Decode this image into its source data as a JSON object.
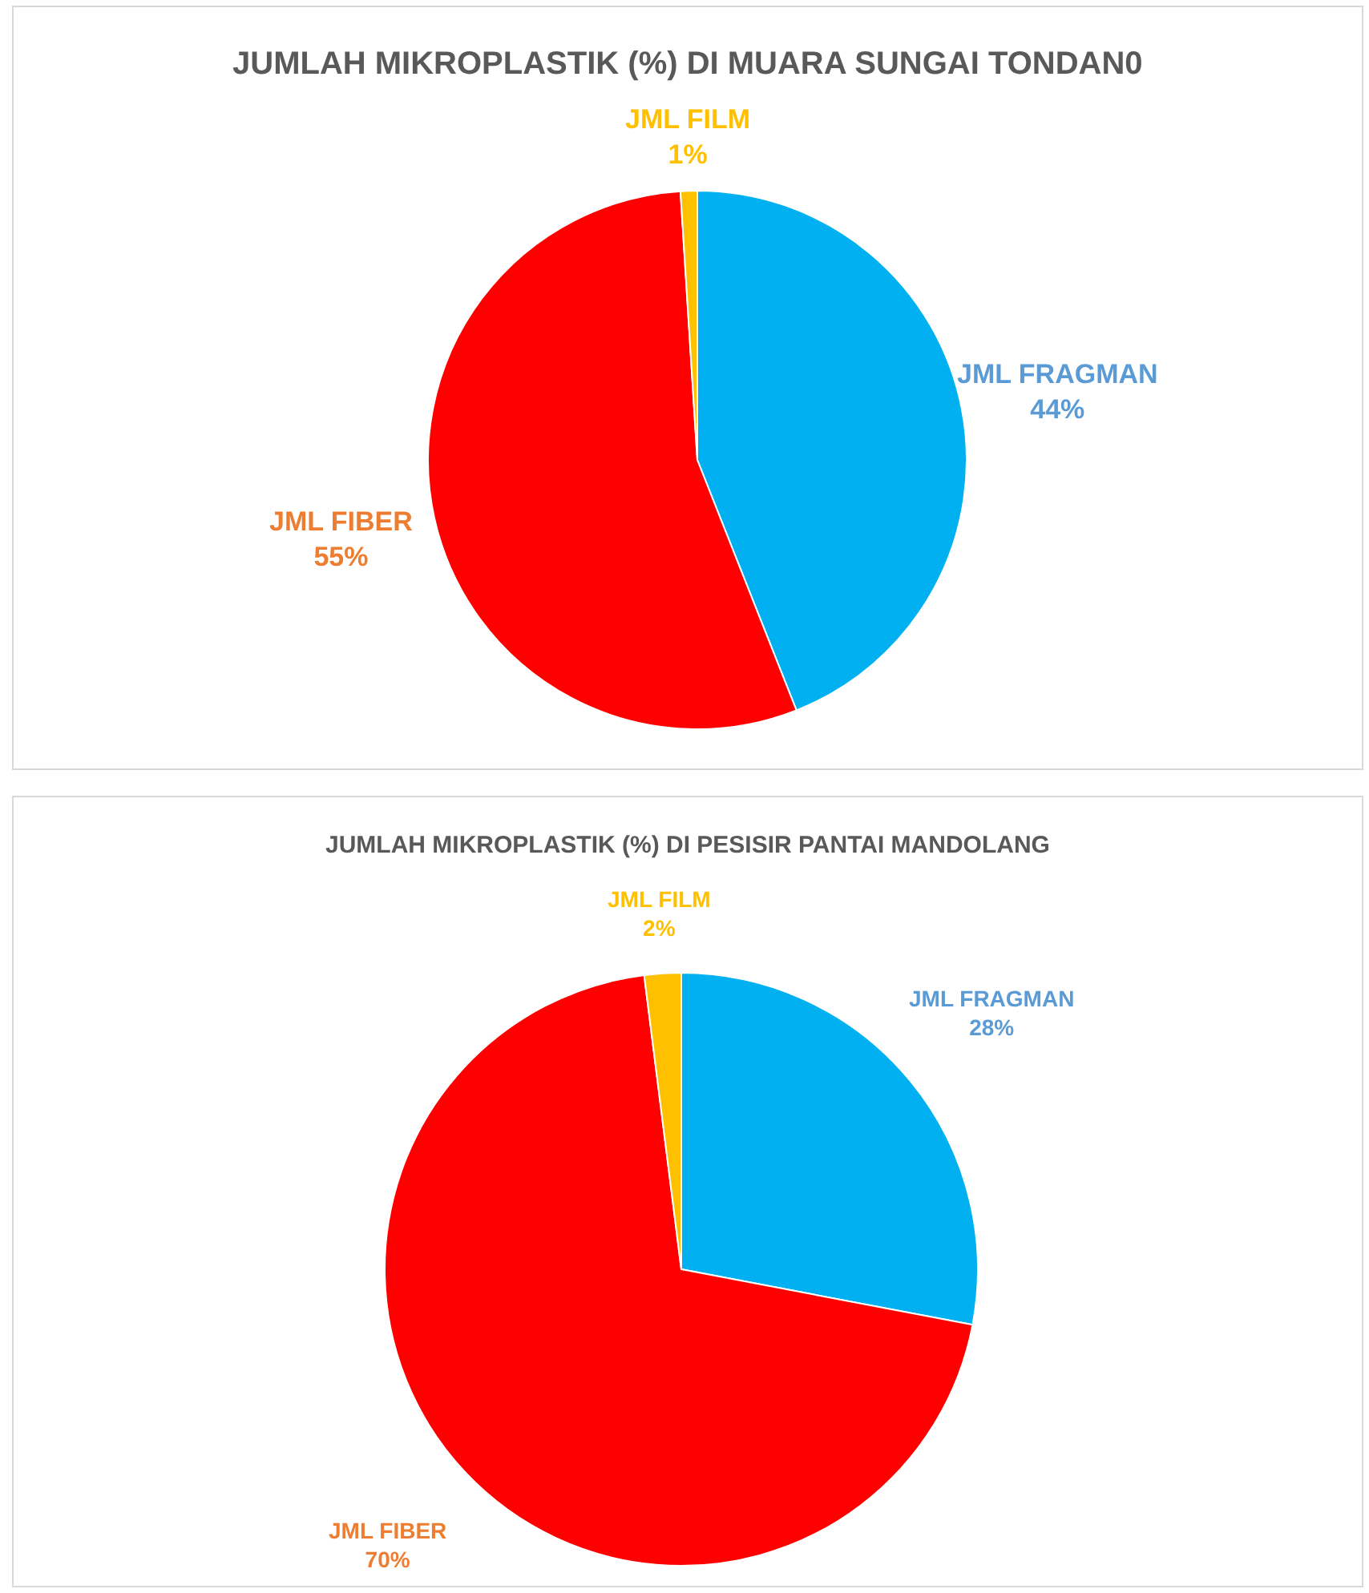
{
  "chart_data": [
    {
      "type": "pie",
      "title": "JUMLAH MIKROPLASTIK (%) DI MUARA SUNGAI TONDAN0",
      "categories": [
        "JML FRAGMAN",
        "JML FIBER",
        "JML FILM"
      ],
      "values": [
        44,
        55,
        1
      ],
      "colors": [
        "#00b0f0",
        "#ff0000",
        "#ffc000"
      ],
      "value_labels": [
        "44%",
        "55%",
        "1%"
      ]
    },
    {
      "type": "pie",
      "title": "JUMLAH MIKROPLASTIK (%) DI PESISIR PANTAI MANDOLANG",
      "categories": [
        "JML FRAGMAN",
        "JML FIBER",
        "JML FILM"
      ],
      "values": [
        28,
        70,
        2
      ],
      "colors": [
        "#00b0f0",
        "#ff0000",
        "#ffc000"
      ],
      "value_labels": [
        "28%",
        "70%",
        "2%"
      ]
    }
  ]
}
